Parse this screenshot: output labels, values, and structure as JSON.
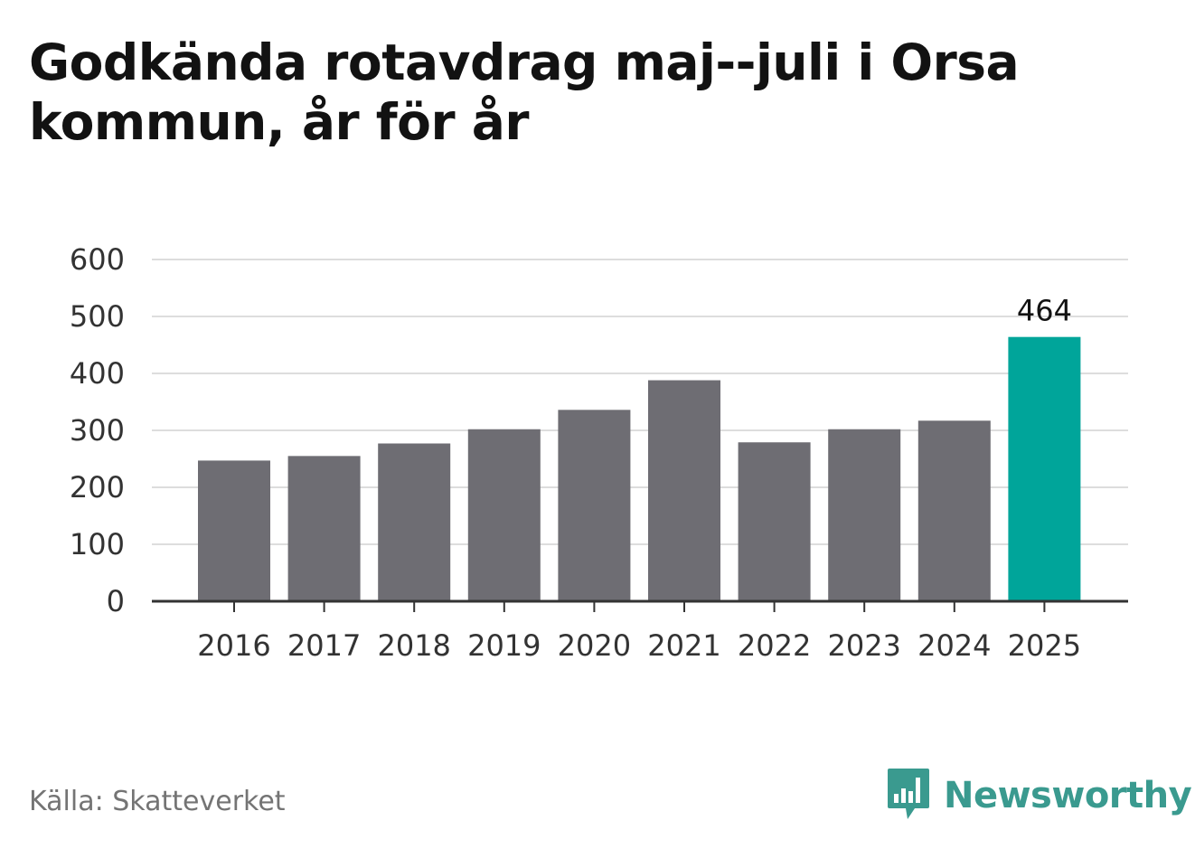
{
  "title": "Godkända rotavdrag maj--juli i Orsa kommun, år för år",
  "source": "Källa: Skatteverket",
  "brand": {
    "name": "Newsworthy",
    "icon": "bar-chart-speech-bubble-icon",
    "color": "#3a9a8f"
  },
  "colors": {
    "bar": "#6e6d73",
    "highlight": "#00a59a",
    "grid": "#dddddd",
    "axis": "#333333"
  },
  "chart_data": {
    "type": "bar",
    "title": "Godkända rotavdrag maj--juli i Orsa kommun, år för år",
    "xlabel": "",
    "ylabel": "",
    "categories": [
      "2016",
      "2017",
      "2018",
      "2019",
      "2020",
      "2021",
      "2022",
      "2023",
      "2024",
      "2025"
    ],
    "values": [
      247,
      255,
      277,
      302,
      336,
      388,
      279,
      302,
      317,
      464
    ],
    "ylim": [
      0,
      600
    ],
    "yticks": [
      0,
      100,
      200,
      300,
      400,
      500,
      600
    ],
    "highlight_index": 9,
    "data_labels": [
      {
        "index": 9,
        "text": "464"
      }
    ],
    "grid": true,
    "legend": "none"
  }
}
